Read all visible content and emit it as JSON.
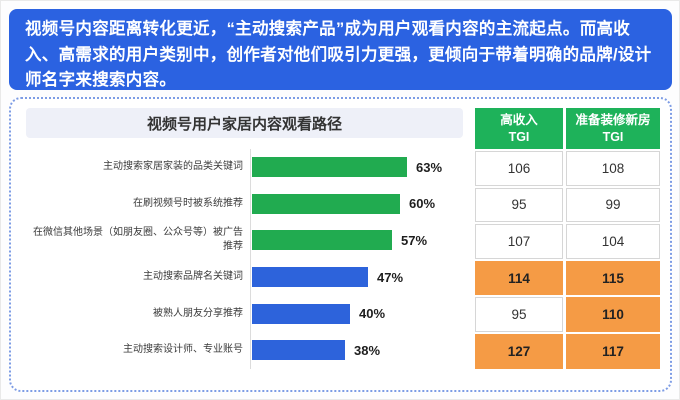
{
  "header": {
    "text": "视频号内容距离转化更近，“主动搜索产品”成为用户观看内容的主流起点。而高收入、高需求的用户类别中，创作者对他们吸引力更强，更倾向于带着明确的品牌/设计师名字来搜索内容。"
  },
  "chart_data": {
    "type": "bar",
    "orientation": "horizontal",
    "title": "视频号用户家居内容观看路径",
    "categories": [
      "主动搜索家居家装的品类关键词",
      "在刷视频号时被系统推荐",
      "在微信其他场景（如朋友圈、公众号等）被广告\n推荐",
      "主动搜索品牌名关键词",
      "被熟人朋友分享推荐",
      "主动搜索设计师、专业账号"
    ],
    "values": [
      63,
      60,
      57,
      47,
      40,
      38
    ],
    "value_labels": [
      "63%",
      "60%",
      "57%",
      "47%",
      "40%",
      "38%"
    ],
    "bar_colors": [
      "#21ab50",
      "#21ab50",
      "#21ab50",
      "#2d63db",
      "#2d63db",
      "#2d63db"
    ],
    "xlim": [
      0,
      70
    ],
    "grid": false,
    "legend": "none"
  },
  "table": {
    "columns": [
      {
        "line1": "高收入",
        "line2": "TGI"
      },
      {
        "line1": "准备装修新房",
        "line2": "TGI"
      }
    ],
    "rows": [
      {
        "cells": [
          {
            "value": "106",
            "highlight": false
          },
          {
            "value": "108",
            "highlight": false
          }
        ]
      },
      {
        "cells": [
          {
            "value": "95",
            "highlight": false
          },
          {
            "value": "99",
            "highlight": false
          }
        ]
      },
      {
        "cells": [
          {
            "value": "107",
            "highlight": false
          },
          {
            "value": "104",
            "highlight": false
          }
        ]
      },
      {
        "cells": [
          {
            "value": "114",
            "highlight": true
          },
          {
            "value": "115",
            "highlight": true
          }
        ]
      },
      {
        "cells": [
          {
            "value": "95",
            "highlight": false
          },
          {
            "value": "110",
            "highlight": true
          }
        ]
      },
      {
        "cells": [
          {
            "value": "127",
            "highlight": true
          },
          {
            "value": "117",
            "highlight": true
          }
        ]
      }
    ]
  },
  "colors": {
    "header_bg": "#2b62e1",
    "bar_green": "#21ab50",
    "bar_blue": "#2d63db",
    "table_header_green": "#1eb25a",
    "highlight_orange": "#f59b45",
    "panel_border": "#7d9ce5",
    "chart_title_bg": "#eef0f8"
  }
}
